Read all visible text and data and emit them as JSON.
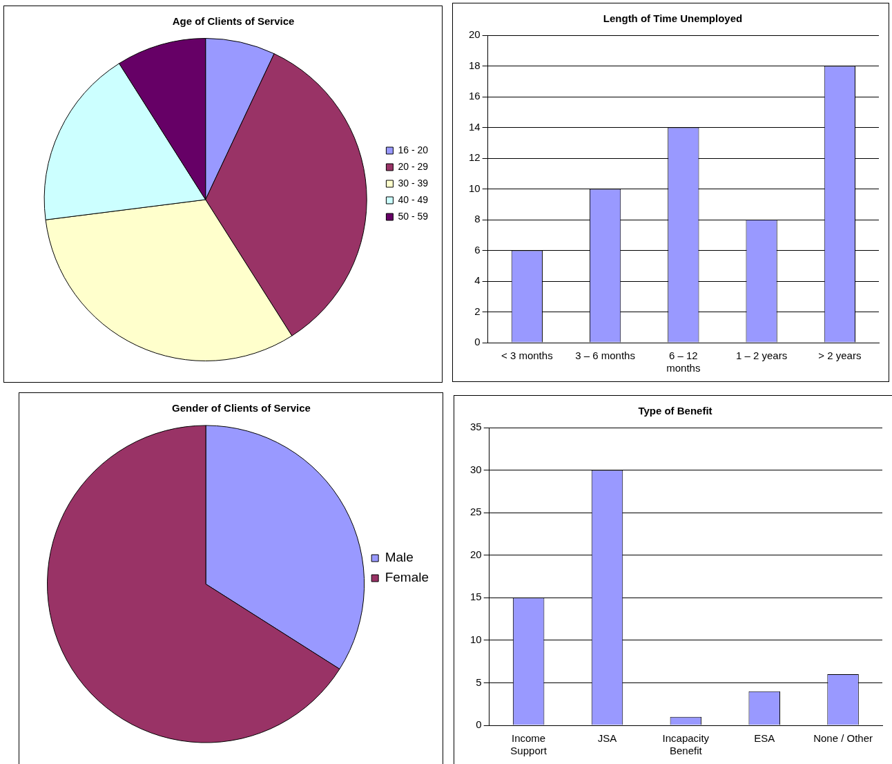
{
  "chart_data": [
    {
      "type": "pie",
      "title": "Age of Clients of Service",
      "categories": [
        "16 - 20",
        "20 - 29",
        "30 - 39",
        "40 - 49",
        "50 - 59"
      ],
      "values": [
        7,
        34,
        32,
        18,
        9
      ],
      "colors": [
        "#9999ff",
        "#993366",
        "#ffffcc",
        "#ccffff",
        "#660066"
      ],
      "legend": "right"
    },
    {
      "type": "bar",
      "title": "Length of Time Unemployed",
      "categories": [
        "< 3 months",
        "3 – 6 months",
        "6 – 12 months",
        "1 – 2 years",
        "> 2 years"
      ],
      "values": [
        6,
        10,
        14,
        8,
        18
      ],
      "color": "#9999ff",
      "ylim": [
        0,
        20
      ],
      "yticks": [
        0,
        2,
        4,
        6,
        8,
        10,
        12,
        14,
        16,
        18,
        20
      ],
      "grid": "y"
    },
    {
      "type": "pie",
      "title": "Gender of Clients of Service",
      "categories": [
        "Male",
        "Female"
      ],
      "values": [
        34,
        66
      ],
      "colors": [
        "#9999ff",
        "#993366"
      ],
      "legend": "right"
    },
    {
      "type": "bar",
      "title": "Type of Benefit",
      "categories": [
        "Income Support",
        "JSA",
        "Incapacity Benefit",
        "ESA",
        "None / Other"
      ],
      "values": [
        15,
        30,
        1,
        4,
        6
      ],
      "color": "#9999ff",
      "ylim": [
        0,
        35
      ],
      "yticks": [
        0,
        5,
        10,
        15,
        20,
        25,
        30,
        35
      ],
      "grid": "y"
    }
  ]
}
